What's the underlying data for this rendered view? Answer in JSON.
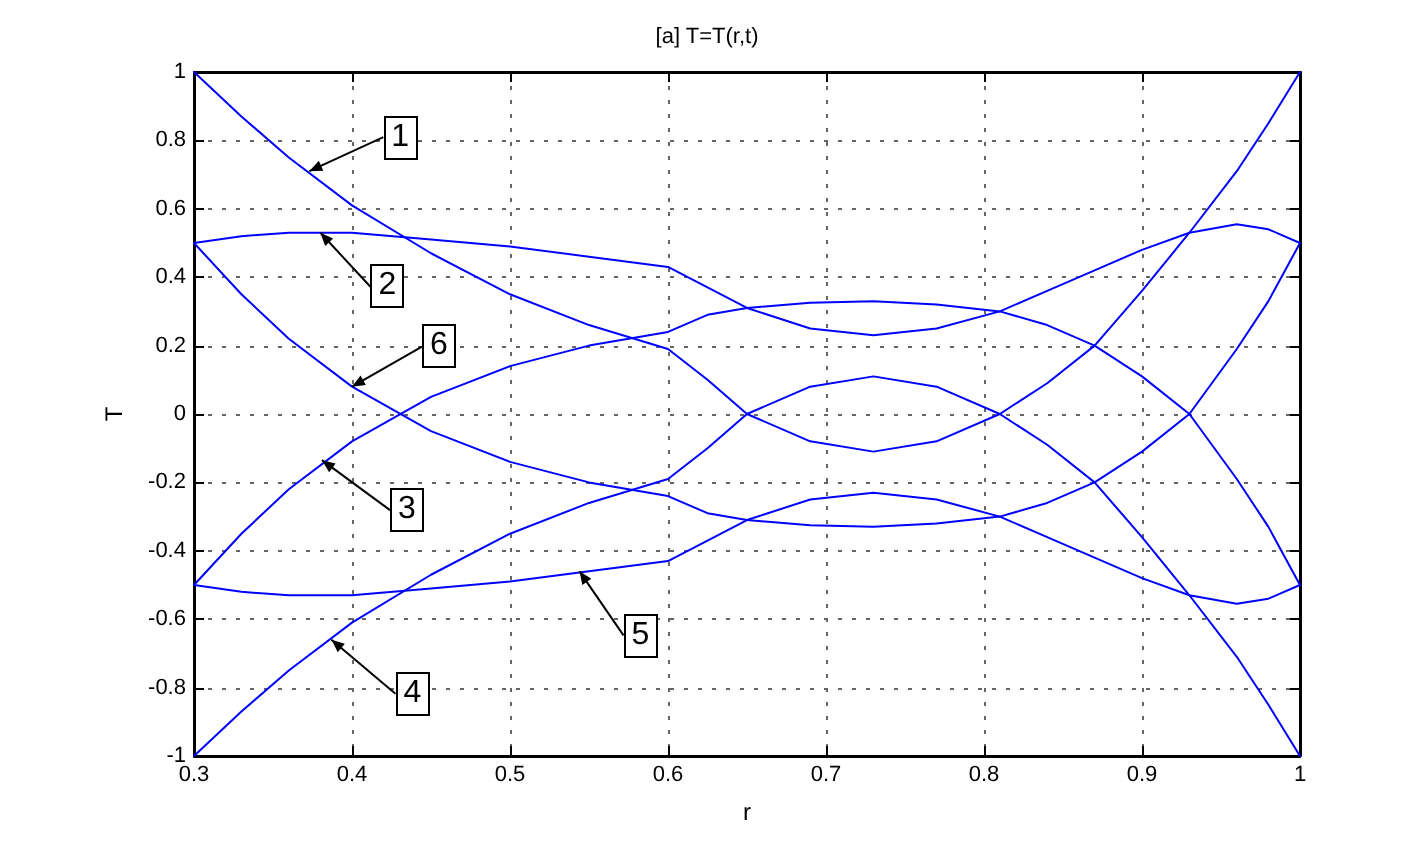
{
  "chart_data": {
    "type": "line",
    "title": "[a] T=T(r,t)",
    "xlabel": "r",
    "ylabel": "T",
    "xlim": [
      0.3,
      1
    ],
    "xticks": [
      0.3,
      0.4,
      0.5,
      0.6,
      0.7,
      0.8,
      0.9,
      1
    ],
    "ylim": [
      -1,
      1
    ],
    "yticks": [
      -1,
      -0.8,
      -0.6,
      -0.4,
      -0.2,
      0,
      0.2,
      0.4,
      0.6,
      0.8,
      1
    ],
    "grid": true,
    "marker": "none",
    "line_style": "solid",
    "x": [
      0.3,
      0.33,
      0.36,
      0.4,
      0.45,
      0.5,
      0.55,
      0.6,
      0.625,
      0.65,
      0.69,
      0.73,
      0.77,
      0.81,
      0.84,
      0.87,
      0.9,
      0.93,
      0.96,
      0.98,
      1
    ],
    "series": [
      {
        "color": "#0000ff",
        "values": [
          1,
          0.87,
          0.75,
          0.61,
          0.47,
          0.35,
          0.26,
          0.19,
          0.1,
          0,
          0.08,
          0.11,
          0.08,
          0,
          -0.09,
          -0.2,
          -0.36,
          -0.53,
          -0.71,
          -0.85,
          -1
        ]
      },
      {
        "color": "#0000ff",
        "values": [
          0.5,
          0.52,
          0.53,
          0.53,
          0.51,
          0.49,
          0.46,
          0.43,
          0.37,
          0.31,
          0.25,
          0.23,
          0.25,
          0.3,
          0.36,
          0.42,
          0.48,
          0.53,
          0.555,
          0.54,
          0.5
        ]
      },
      {
        "color": "#0000ff",
        "values": [
          -0.5,
          -0.35,
          -0.22,
          -0.08,
          0.05,
          0.14,
          0.2,
          0.24,
          0.29,
          0.31,
          0.325,
          0.33,
          0.32,
          0.3,
          0.26,
          0.2,
          0.11,
          0,
          -0.19,
          -0.33,
          -0.5
        ]
      },
      {
        "color": "#0000ff",
        "values": [
          -1,
          -0.87,
          -0.75,
          -0.61,
          -0.47,
          -0.35,
          -0.26,
          -0.19,
          -0.1,
          0,
          -0.08,
          -0.11,
          -0.08,
          0,
          0.09,
          0.2,
          0.36,
          0.53,
          0.71,
          0.85,
          1
        ]
      },
      {
        "color": "#0000ff",
        "values": [
          -0.5,
          -0.52,
          -0.53,
          -0.53,
          -0.51,
          -0.49,
          -0.46,
          -0.43,
          -0.37,
          -0.31,
          -0.25,
          -0.23,
          -0.25,
          -0.3,
          -0.26,
          -0.2,
          -0.11,
          0,
          0.19,
          0.33,
          0.5
        ]
      },
      {
        "color": "#0000ff",
        "values": [
          0.5,
          0.35,
          0.22,
          0.08,
          -0.05,
          -0.14,
          -0.2,
          -0.24,
          -0.29,
          -0.31,
          -0.325,
          -0.33,
          -0.32,
          -0.3,
          -0.36,
          -0.42,
          -0.48,
          -0.53,
          -0.555,
          -0.54,
          -0.5
        ]
      }
    ],
    "annotations": [
      {
        "text": "1",
        "x": 0.373,
        "y": 0.71
      },
      {
        "text": "2",
        "x": 0.38,
        "y": 0.53
      },
      {
        "text": "6",
        "x": 0.4,
        "y": 0.08
      },
      {
        "text": "3",
        "x": 0.381,
        "y": -0.135
      },
      {
        "text": "4",
        "x": 0.387,
        "y": -0.66
      },
      {
        "text": "5",
        "x": 0.544,
        "y": -0.46
      }
    ]
  }
}
